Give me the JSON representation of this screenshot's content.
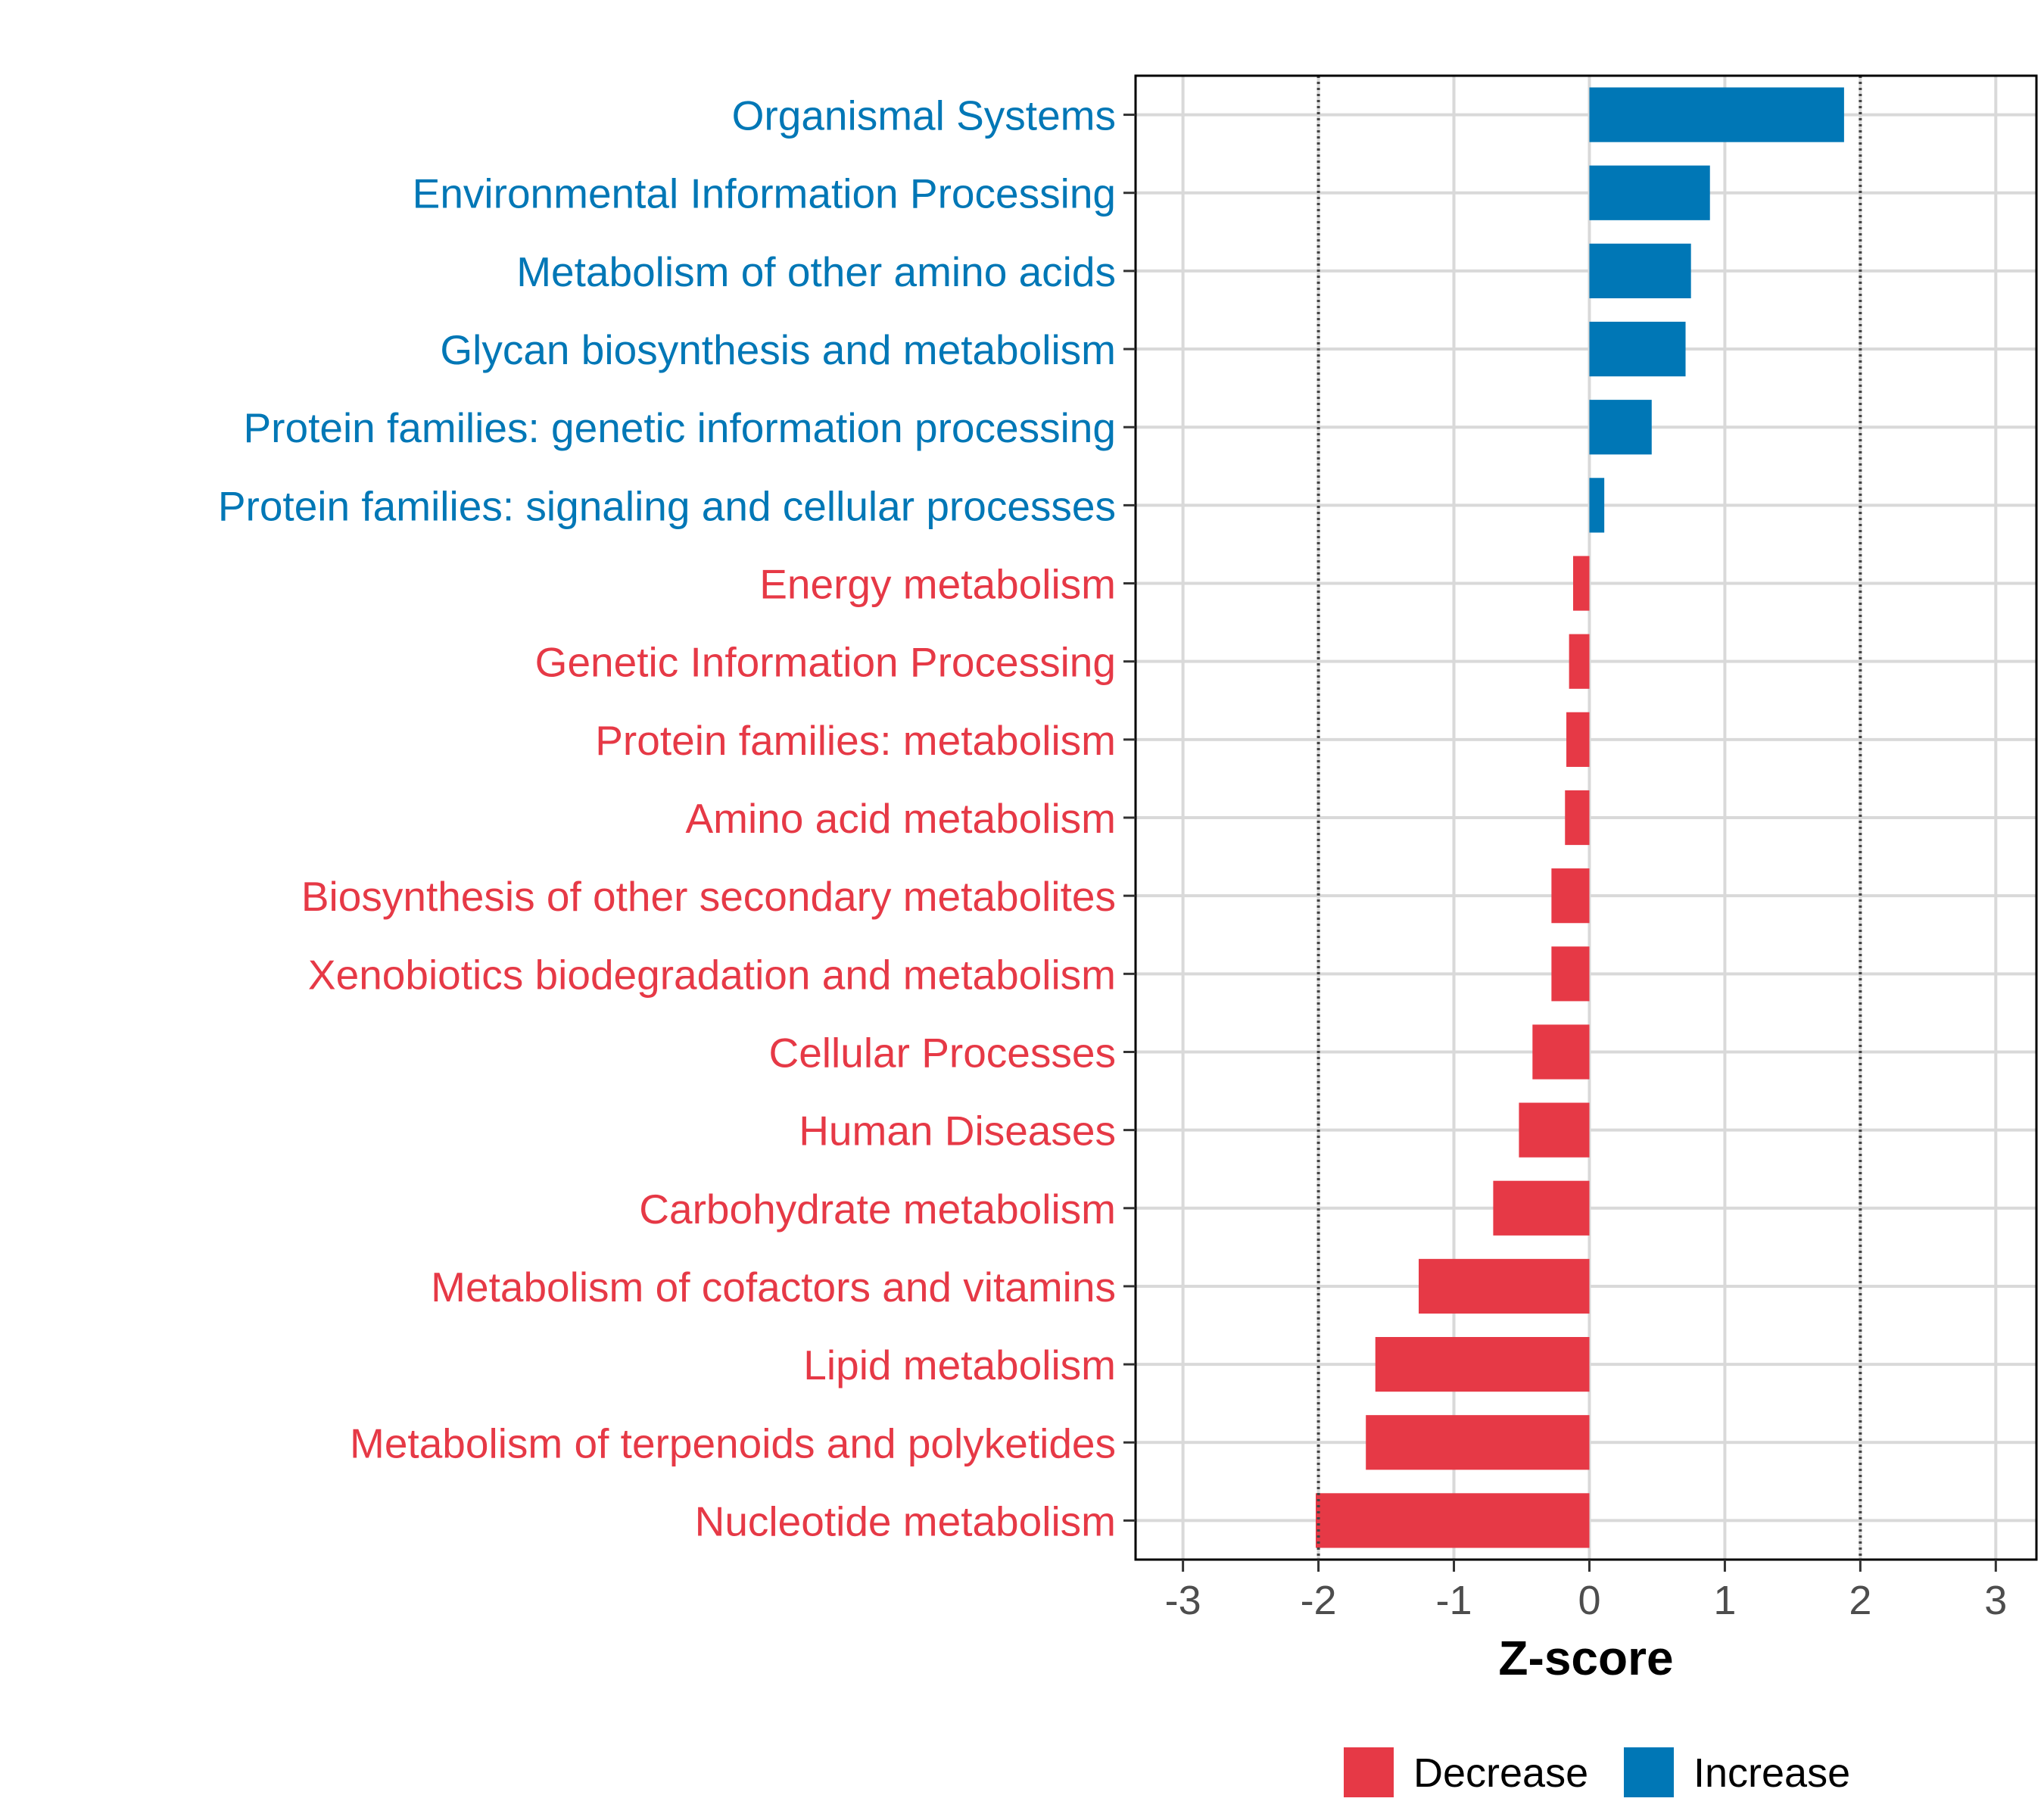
{
  "chart_data": {
    "type": "bar",
    "orientation": "horizontal",
    "xlabel": "Z-score",
    "xlim": [
      -3.35,
      3.3
    ],
    "xticks": [
      -3,
      -2,
      -1,
      0,
      1,
      2,
      3
    ],
    "reference_lines": [
      -2,
      2
    ],
    "grid": true,
    "categories": [
      "Organismal Systems",
      "Environmental Information Processing",
      "Metabolism of other amino acids",
      "Glycan biosynthesis and metabolism",
      "Protein families: genetic information processing",
      "Protein families: signaling and cellular processes",
      "Energy metabolism",
      "Genetic Information Processing",
      "Protein families: metabolism",
      "Amino acid metabolism",
      "Biosynthesis of other secondary metabolites",
      "Xenobiotics biodegradation and metabolism",
      "Cellular Processes",
      "Human Diseases",
      "Carbohydrate metabolism",
      "Metabolism of cofactors and vitamins",
      "Lipid metabolism",
      "Metabolism of terpenoids and polyketides",
      "Nucleotide metabolism"
    ],
    "values": [
      1.88,
      0.89,
      0.75,
      0.71,
      0.46,
      0.11,
      -0.12,
      -0.15,
      -0.17,
      -0.18,
      -0.28,
      -0.28,
      -0.42,
      -0.52,
      -0.71,
      -1.26,
      -1.58,
      -1.65,
      -2.02
    ],
    "legend": {
      "position": "bottom",
      "entries": [
        {
          "name": "Decrease",
          "color": "#E63946"
        },
        {
          "name": "Increase",
          "color": "#0077B6"
        }
      ]
    }
  },
  "colors": {
    "decrease": "#E63946",
    "increase": "#0077B6",
    "grid": "#d9d9d9",
    "axis": "#000000"
  }
}
